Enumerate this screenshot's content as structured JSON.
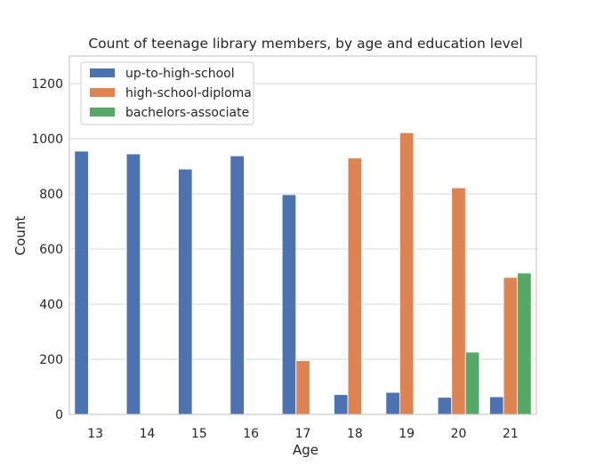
{
  "chart_data": {
    "type": "bar",
    "title": "Count of teenage library members, by age and education level",
    "xlabel": "Age",
    "ylabel": "Count",
    "categories": [
      "13",
      "14",
      "15",
      "16",
      "17",
      "18",
      "19",
      "20",
      "21"
    ],
    "ylim": [
      0,
      1300
    ],
    "yticks": [
      0,
      200,
      400,
      600,
      800,
      1000,
      1200
    ],
    "grid": true,
    "legend_position": "upper-left",
    "series": [
      {
        "name": "up-to-high-school",
        "color": "#4c72b0",
        "values": [
          955,
          945,
          890,
          938,
          797,
          72,
          80,
          62,
          64
        ]
      },
      {
        "name": "high-school-diploma",
        "color": "#dd8452",
        "values": [
          0,
          0,
          0,
          0,
          195,
          930,
          1022,
          822,
          497
        ]
      },
      {
        "name": "bachelors-associate",
        "color": "#55a868",
        "values": [
          0,
          0,
          0,
          0,
          0,
          0,
          0,
          226,
          513
        ]
      }
    ]
  }
}
